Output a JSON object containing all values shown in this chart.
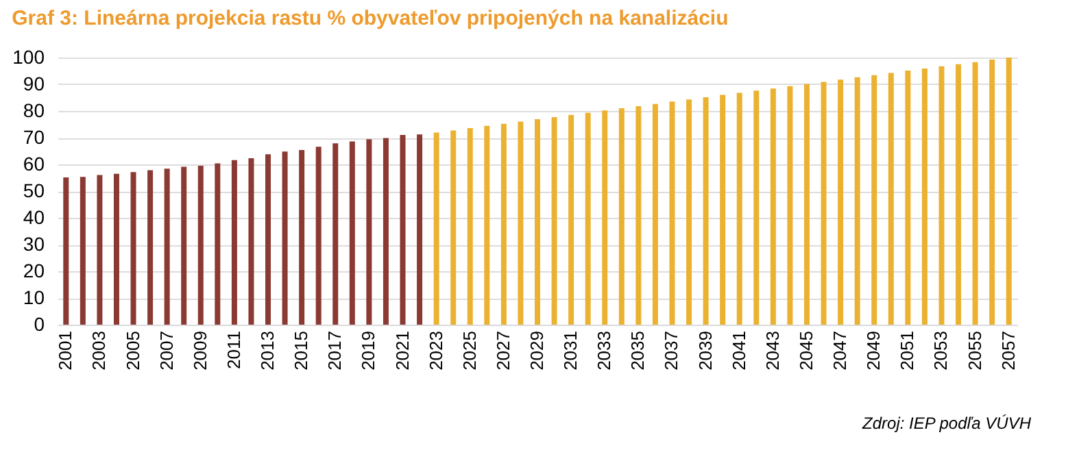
{
  "chart_data": {
    "type": "bar",
    "title": "Graf 3: Lineárna projekcia rastu % obyvateľov pripojených na kanalizáciu",
    "categories": [
      "2001",
      null,
      "2003",
      null,
      "2005",
      null,
      "2007",
      null,
      "2009",
      null,
      "2011",
      null,
      "2013",
      null,
      "2015",
      null,
      "2017",
      null,
      "2019",
      null,
      "2021",
      null,
      "2023",
      null,
      "2025",
      null,
      "2027",
      null,
      "2029",
      null,
      "2031",
      null,
      "2033",
      null,
      "2035",
      null,
      "2037",
      null,
      "2039",
      null,
      "2041",
      null,
      "2043",
      null,
      "2045",
      null,
      "2047",
      null,
      "2049",
      null,
      "2051",
      null,
      "2053",
      null,
      "2055",
      null,
      "2057"
    ],
    "series": [
      {
        "color": "#8b3a33",
        "values": [
          55.1,
          55.3,
          56.0,
          56.5,
          57.1,
          57.8,
          58.4,
          59.1,
          59.5,
          60.4,
          61.6,
          62.3,
          63.8,
          64.8,
          65.4,
          66.6,
          67.9,
          68.6,
          69.4,
          69.9,
          71.0,
          71.2,
          null,
          null,
          null,
          null,
          null,
          null,
          null,
          null,
          null,
          null,
          null,
          null,
          null,
          null,
          null,
          null,
          null,
          null,
          null,
          null,
          null,
          null,
          null,
          null,
          null,
          null,
          null,
          null,
          null,
          null,
          null,
          null,
          null,
          null,
          null
        ]
      },
      {
        "color": "#ebb232",
        "values": [
          null,
          null,
          null,
          null,
          null,
          null,
          null,
          null,
          null,
          null,
          null,
          null,
          null,
          null,
          null,
          null,
          null,
          null,
          null,
          null,
          null,
          null,
          71.9,
          72.7,
          73.6,
          74.4,
          75.2,
          76.0,
          76.9,
          77.7,
          78.5,
          79.3,
          80.2,
          81.0,
          81.8,
          82.6,
          83.5,
          84.3,
          85.1,
          86.0,
          86.8,
          87.6,
          88.4,
          89.3,
          90.1,
          90.9,
          91.7,
          92.6,
          93.4,
          94.2,
          95.1,
          95.9,
          96.7,
          97.5,
          98.3,
          99.2,
          100.0
        ]
      }
    ],
    "ylim": [
      0,
      100
    ],
    "yticks": [
      0,
      10,
      20,
      30,
      40,
      50,
      60,
      70,
      80,
      90,
      100
    ],
    "grid": "y",
    "legend": false,
    "annotations": [
      "Zdroj: IEP podľa VÚVH"
    ]
  }
}
